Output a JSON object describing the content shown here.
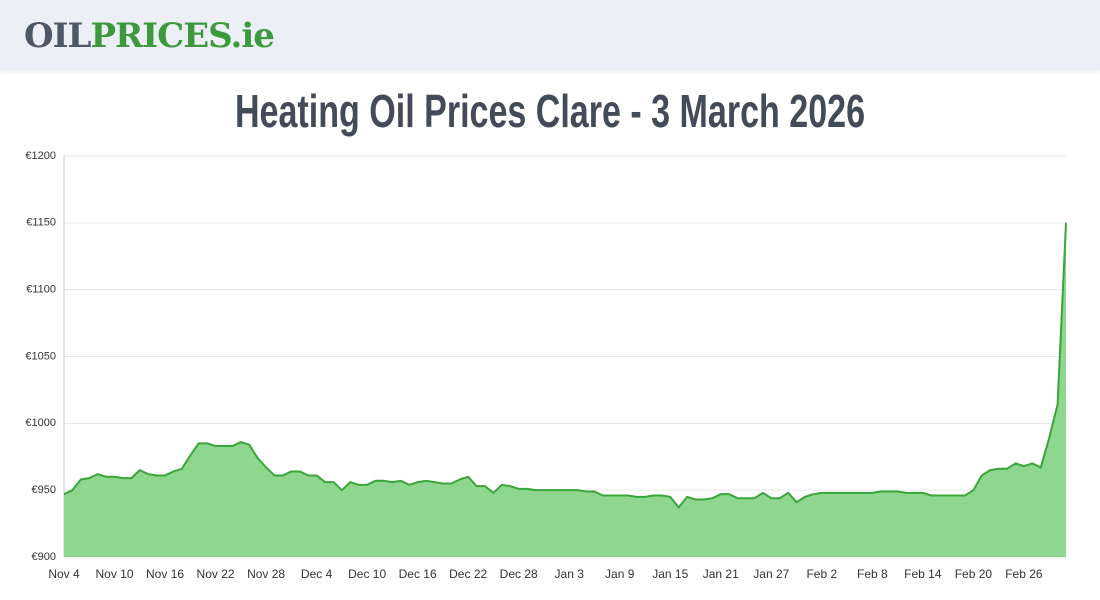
{
  "header": {
    "logo_parts": [
      "OIL",
      "PRICES.ie"
    ]
  },
  "chart_data": {
    "type": "area",
    "title": "Heating Oil Prices Clare - 3 March 2026",
    "categories": [
      "Nov 4",
      null,
      null,
      null,
      null,
      null,
      "Nov 10",
      null,
      null,
      null,
      null,
      null,
      "Nov 16",
      null,
      null,
      null,
      null,
      null,
      "Nov 22",
      null,
      null,
      null,
      null,
      null,
      "Nov 28",
      null,
      null,
      null,
      null,
      null,
      "Dec 4",
      null,
      null,
      null,
      null,
      null,
      "Dec 10",
      null,
      null,
      null,
      null,
      null,
      "Dec 16",
      null,
      null,
      null,
      null,
      null,
      "Dec 22",
      null,
      null,
      null,
      null,
      null,
      "Dec 28",
      null,
      null,
      null,
      null,
      null,
      "Jan 3",
      null,
      null,
      null,
      null,
      null,
      "Jan 9",
      null,
      null,
      null,
      null,
      null,
      "Jan 15",
      null,
      null,
      null,
      null,
      null,
      "Jan 21",
      null,
      null,
      null,
      null,
      null,
      "Jan 27",
      null,
      null,
      null,
      null,
      null,
      "Feb 2",
      null,
      null,
      null,
      null,
      null,
      "Feb 8",
      null,
      null,
      null,
      null,
      null,
      "Feb 14",
      null,
      null,
      null,
      null,
      null,
      "Feb 20",
      null,
      null,
      null,
      null,
      null,
      "Feb 26",
      null,
      null,
      null,
      null,
      null
    ],
    "values": [
      947,
      950,
      958,
      959,
      962,
      960,
      960,
      959,
      959,
      965,
      962,
      961,
      961,
      964,
      966,
      976,
      985,
      985,
      983,
      983,
      983,
      986,
      984,
      974,
      967,
      961,
      961,
      964,
      964,
      961,
      961,
      956,
      956,
      950,
      956,
      954,
      954,
      957,
      957,
      956,
      957,
      954,
      956,
      957,
      956,
      955,
      955,
      958,
      960,
      953,
      953,
      948,
      954,
      953,
      951,
      951,
      950,
      950,
      950,
      950,
      950,
      950,
      949,
      949,
      946,
      946,
      946,
      946,
      945,
      945,
      946,
      946,
      945,
      937,
      945,
      943,
      943,
      944,
      947,
      947,
      944,
      944,
      944,
      948,
      944,
      944,
      948,
      941,
      945,
      947,
      948,
      948,
      948,
      948,
      948,
      948,
      948,
      949,
      949,
      949,
      948,
      948,
      948,
      946,
      946,
      946,
      946,
      946,
      950,
      961,
      965,
      966,
      966,
      970,
      968,
      970,
      967,
      989,
      1014,
      1150
    ],
    "color": "#3aa53a",
    "fill": "#8fd68f",
    "ylim": [
      900,
      1200
    ],
    "yticks": [
      {
        "value": 900,
        "label": "€900"
      },
      {
        "value": 950,
        "label": "€950"
      },
      {
        "value": 1000,
        "label": "€1000"
      },
      {
        "value": 1050,
        "label": "€1050"
      },
      {
        "value": 1100,
        "label": "€1100"
      },
      {
        "value": 1150,
        "label": "€1150"
      },
      {
        "value": 1200,
        "label": "€1200"
      }
    ],
    "grid": true
  }
}
